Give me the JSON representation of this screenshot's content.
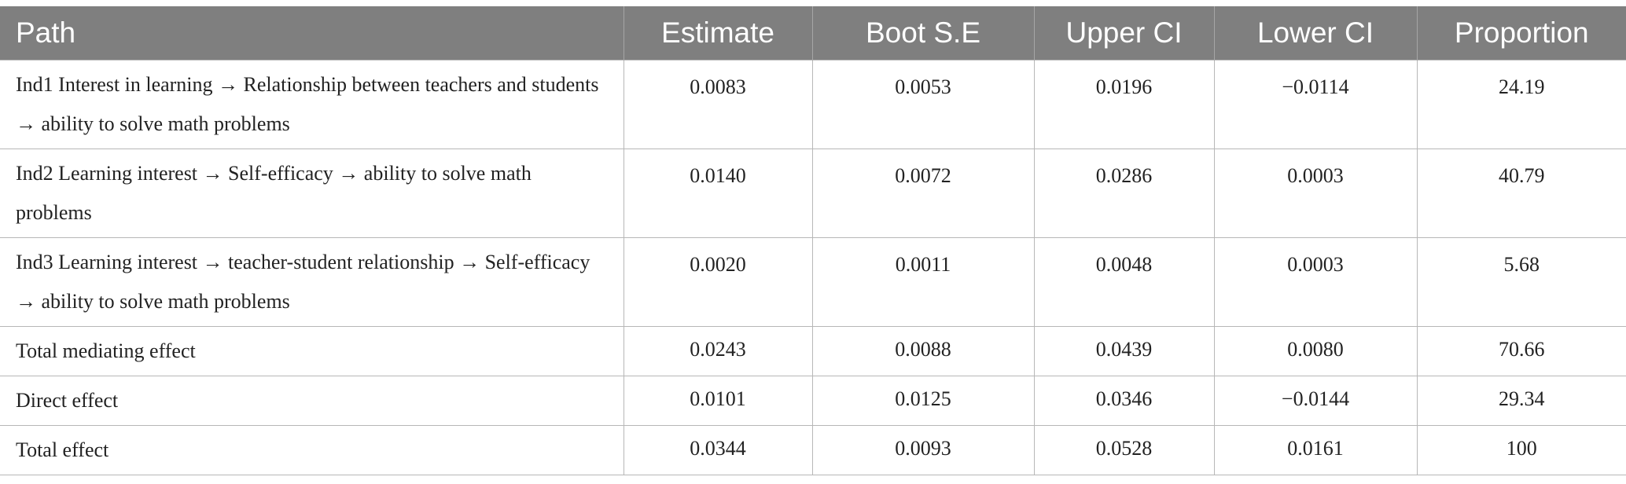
{
  "table": {
    "headers": [
      "Path",
      "Estimate",
      "Boot S.E",
      "Upper CI",
      "Lower CI",
      "Proportion"
    ],
    "rows": [
      {
        "path": "Ind1 Interest in learning → Relationship between teachers and students → ability to solve math problems",
        "estimate": "0.0083",
        "boot_se": "0.0053",
        "upper_ci": "0.0196",
        "lower_ci": "−0.0114",
        "proportion": "24.19"
      },
      {
        "path": "Ind2 Learning interest → Self-efficacy → ability to solve math problems",
        "estimate": "0.0140",
        "boot_se": "0.0072",
        "upper_ci": "0.0286",
        "lower_ci": "0.0003",
        "proportion": "40.79"
      },
      {
        "path": "Ind3 Learning interest → teacher-student relationship → Self-efficacy → ability to solve math problems",
        "estimate": "0.0020",
        "boot_se": "0.0011",
        "upper_ci": "0.0048",
        "lower_ci": "0.0003",
        "proportion": "5.68"
      },
      {
        "path": "Total mediating effect",
        "estimate": "0.0243",
        "boot_se": "0.0088",
        "upper_ci": "0.0439",
        "lower_ci": "0.0080",
        "proportion": "70.66"
      },
      {
        "path": "Direct effect",
        "estimate": "0.0101",
        "boot_se": "0.0125",
        "upper_ci": "0.0346",
        "lower_ci": "−0.0144",
        "proportion": "29.34"
      },
      {
        "path": "Total effect",
        "estimate": "0.0344",
        "boot_se": "0.0093",
        "upper_ci": "0.0528",
        "lower_ci": "0.0161",
        "proportion": "100"
      }
    ]
  }
}
